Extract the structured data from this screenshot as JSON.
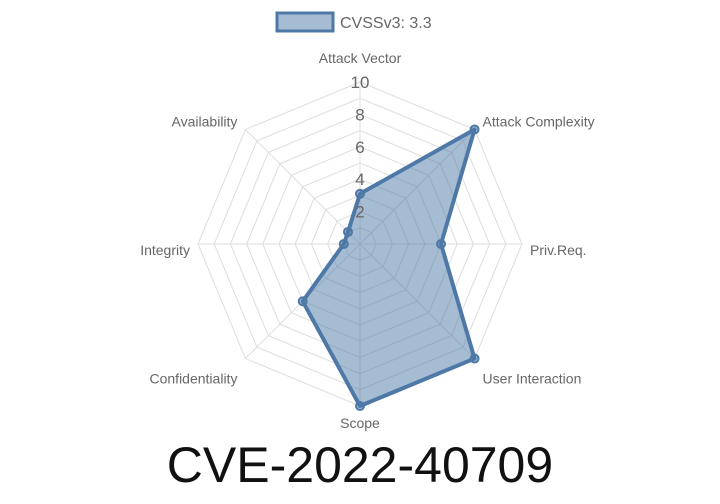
{
  "chart_data": {
    "type": "radar",
    "title": "CVE-2022-40709",
    "categories": [
      "Attack Vector",
      "Attack Complexity",
      "Priv.Req.",
      "User Interaction",
      "Scope",
      "Confidentiality",
      "Integrity",
      "Availability"
    ],
    "series": [
      {
        "name": "CVSSv3: 3.3",
        "values": [
          3.1,
          10,
          5,
          10,
          10,
          5,
          1,
          1.05
        ]
      }
    ],
    "rlim": [
      0,
      10
    ],
    "ticks": [
      "2",
      "4",
      "6",
      "8",
      "10"
    ],
    "grid": true,
    "legend": "top",
    "colors": {
      "line": "#4e79a7",
      "fill": "rgba(78,121,167,0.5)",
      "grid": "#dddddd"
    }
  }
}
